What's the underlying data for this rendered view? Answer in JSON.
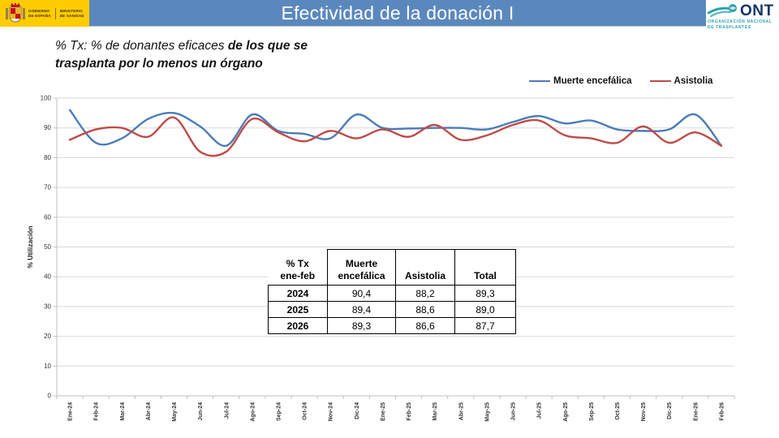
{
  "header": {
    "title": "Efectividad de la donación I",
    "gov_logo": {
      "line1a": "GOBIERNO",
      "line1b": "DE ESPAÑA",
      "line2a": "MINISTERIO",
      "line2b": "DE SANIDAD"
    },
    "ont_logo": {
      "acronym": "ONT",
      "tagline1": "ORGANIZACIÓN NACIONAL",
      "tagline2": "DE TRASPLANTES"
    }
  },
  "subtitle": {
    "prefix": "% Tx: % de donantes eficaces ",
    "bold_line1": "de los que se",
    "bold_line2": "trasplanta por lo menos un órgano"
  },
  "chart_data": {
    "type": "line",
    "title": "",
    "xlabel": "",
    "ylabel": "% Utilización",
    "ylim": [
      0,
      100
    ],
    "yticks": [
      0,
      10,
      20,
      30,
      40,
      50,
      60,
      70,
      80,
      90,
      100
    ],
    "grid": true,
    "smooth": true,
    "legend_position": "top-right",
    "categories": [
      "Ene-24",
      "Feb-24",
      "Mar-24",
      "Abr-24",
      "May-24",
      "Jun-24",
      "Jul-24",
      "Ago-24",
      "Sep-24",
      "Oct-24",
      "Nov-24",
      "Dic-24",
      "Ene-25",
      "Feb-25",
      "Mar-25",
      "Abr-25",
      "May-25",
      "Jun-25",
      "Jul-25",
      "Ago-25",
      "Sep-25",
      "Oct-25",
      "Nov-25",
      "Dic-25",
      "Ene-26",
      "Feb-26"
    ],
    "series": [
      {
        "name": "Muerte encefálica",
        "color": "#4A7CB8",
        "values": [
          96,
          85,
          86.5,
          93,
          95,
          90.5,
          84,
          94.5,
          89,
          88,
          86.5,
          94.5,
          90,
          89.8,
          90,
          90,
          89.5,
          92,
          94,
          91.5,
          92.5,
          89.5,
          89,
          89.5,
          94.5,
          84
        ]
      },
      {
        "name": "Asistolia",
        "color": "#BE4B48",
        "values": [
          86,
          89.5,
          90,
          87,
          93.5,
          82,
          82,
          93,
          88.5,
          85.5,
          89,
          86.5,
          89.5,
          87,
          91,
          86,
          87.5,
          91,
          92.5,
          87.5,
          86.5,
          85,
          90.5,
          85,
          88.5,
          84
        ]
      }
    ]
  },
  "table": {
    "headers": [
      [
        "% Tx",
        "ene-feb"
      ],
      [
        "Muerte",
        "encefálica"
      ],
      [
        "Asistolia"
      ],
      [
        "Total"
      ]
    ],
    "rows": [
      [
        "2024",
        "90,4",
        "88,2",
        "89,3"
      ],
      [
        "2025",
        "89,4",
        "88,6",
        "89,0"
      ],
      [
        "2026",
        "89,3",
        "86,6",
        "87,7"
      ]
    ]
  },
  "colors": {
    "title_bar": "#5B88BC",
    "gov_yellow": "#FFCC00",
    "ont_navy": "#15356B",
    "ont_teal": "#2E9FB0",
    "gridline": "#D9D9D9",
    "axis": "#BFBFBF"
  }
}
